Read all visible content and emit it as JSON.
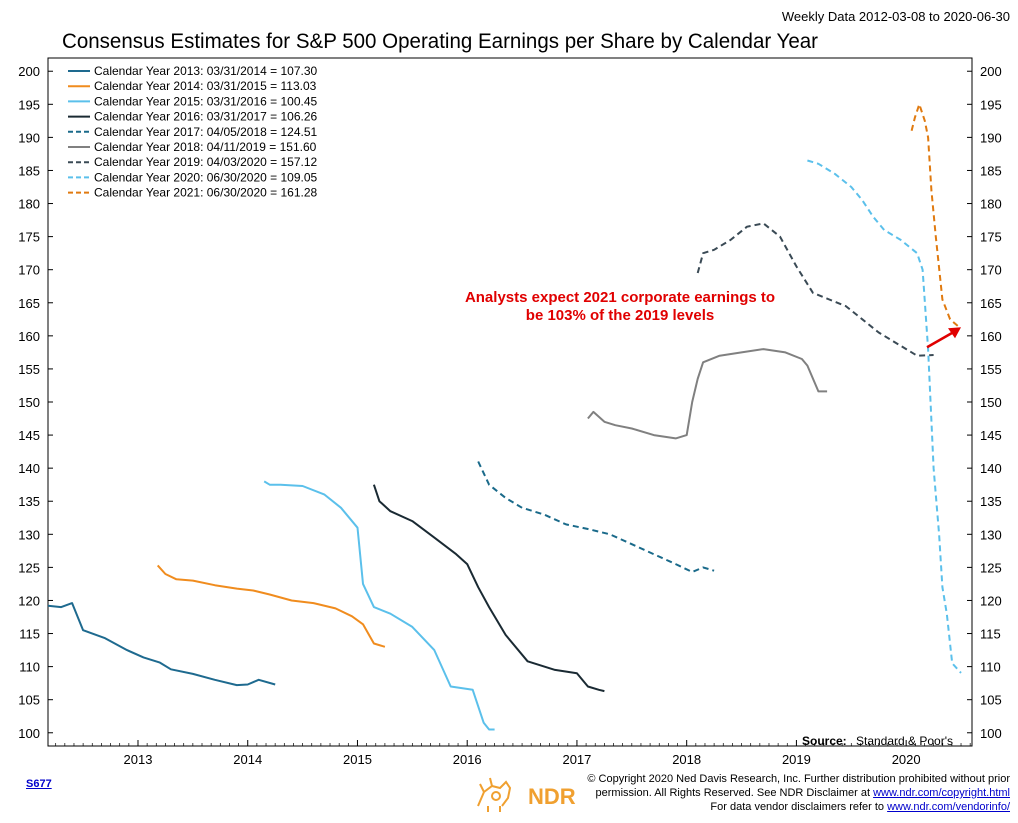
{
  "header": {
    "date_range": "Weekly Data 2012-03-08 to 2020-06-30",
    "title": "Consensus Estimates for S&P 500 Operating Earnings per Share by Calendar Year"
  },
  "annotation": {
    "line1": "Analysts expect 2021 corporate earnings to",
    "line2": "be 103% of the 2019 levels",
    "color": "#e00000"
  },
  "source": {
    "label": "Source:",
    "value": "Standard & Poor's"
  },
  "footer": {
    "chart_id": "S677",
    "copyright_line1": "© Copyright 2020 Ned Davis Research, Inc. Further distribution prohibited without prior",
    "copyright_line2_prefix": "permission. All Rights Reserved. See NDR Disclaimer at ",
    "copyright_line2_link": "www.ndr.com/copyright.html",
    "copyright_line3_prefix": "For data vendor disclaimers refer to ",
    "copyright_line3_link": "www.ndr.com/vendorinfo/",
    "logo_text": "NDR",
    "logo_icon": "bull-bear-icon"
  },
  "chart_data": {
    "type": "line",
    "xlim": [
      2012.18,
      2020.6
    ],
    "ylim": [
      98,
      202
    ],
    "y_ticks": [
      100,
      105,
      110,
      115,
      120,
      125,
      130,
      135,
      140,
      145,
      150,
      155,
      160,
      165,
      170,
      175,
      180,
      185,
      190,
      195,
      200
    ],
    "x_ticks": [
      "2013",
      "2014",
      "2015",
      "2016",
      "2017",
      "2018",
      "2019",
      "2020"
    ],
    "x_tick_positions": [
      2013,
      2014,
      2015,
      2016,
      2017,
      2018,
      2019,
      2020
    ],
    "annotation_arrow_to": [
      2020.5,
      161.3
    ],
    "series": [
      {
        "name": "Calendar Year 2013:  03/31/2014 = 107.30",
        "color": "#1e6a8f",
        "dash": false,
        "x": [
          2012.18,
          2012.3,
          2012.4,
          2012.5,
          2012.7,
          2012.9,
          2013.05,
          2013.2,
          2013.3,
          2013.5,
          2013.7,
          2013.9,
          2014.0,
          2014.1,
          2014.25
        ],
        "y": [
          119.2,
          119.0,
          119.6,
          115.5,
          114.3,
          112.5,
          111.4,
          110.6,
          109.6,
          108.9,
          108.0,
          107.2,
          107.3,
          108.0,
          107.3
        ]
      },
      {
        "name": "Calendar Year 2014:  03/31/2015 = 113.03",
        "color": "#f08c1e",
        "dash": false,
        "x": [
          2013.18,
          2013.25,
          2013.35,
          2013.5,
          2013.7,
          2013.9,
          2014.05,
          2014.2,
          2014.4,
          2014.6,
          2014.8,
          2014.95,
          2015.05,
          2015.15,
          2015.25
        ],
        "y": [
          125.3,
          124.0,
          123.2,
          123.0,
          122.3,
          121.8,
          121.5,
          120.9,
          120.0,
          119.6,
          118.8,
          117.6,
          116.4,
          113.5,
          113.0
        ]
      },
      {
        "name": "Calendar Year 2015:  03/31/2016 = 100.45",
        "color": "#5bc0eb",
        "dash": false,
        "x": [
          2014.15,
          2014.2,
          2014.3,
          2014.5,
          2014.7,
          2014.85,
          2015.0,
          2015.05,
          2015.15,
          2015.3,
          2015.5,
          2015.7,
          2015.85,
          2016.05,
          2016.15,
          2016.2,
          2016.25
        ],
        "y": [
          138.0,
          137.5,
          137.5,
          137.3,
          136.0,
          134.0,
          131.0,
          122.5,
          119.0,
          118.0,
          116.0,
          112.5,
          107.0,
          106.5,
          101.5,
          100.5,
          100.5
        ]
      },
      {
        "name": "Calendar Year 2016:  03/31/2017 = 106.26",
        "color": "#1a2a33",
        "dash": false,
        "x": [
          2015.15,
          2015.2,
          2015.3,
          2015.5,
          2015.7,
          2015.9,
          2016.0,
          2016.1,
          2016.2,
          2016.35,
          2016.55,
          2016.8,
          2017.0,
          2017.1,
          2017.2,
          2017.25
        ],
        "y": [
          137.5,
          135.0,
          133.5,
          132.0,
          129.5,
          127.0,
          125.5,
          122.0,
          119.0,
          114.8,
          110.8,
          109.5,
          109.0,
          107.0,
          106.5,
          106.3
        ]
      },
      {
        "name": "Calendar Year 2017:  04/05/2018 = 124.51",
        "color": "#1a6a8a",
        "dash": true,
        "x": [
          2016.1,
          2016.2,
          2016.35,
          2016.5,
          2016.7,
          2016.9,
          2017.1,
          2017.3,
          2017.5,
          2017.7,
          2017.9,
          2018.05,
          2018.15,
          2018.25
        ],
        "y": [
          141.0,
          137.5,
          135.5,
          134.0,
          133.0,
          131.5,
          130.8,
          130.0,
          128.5,
          127.0,
          125.5,
          124.3,
          125.0,
          124.5
        ]
      },
      {
        "name": "Calendar Year 2018:  04/11/2019 = 151.60",
        "color": "#808080",
        "dash": false,
        "x": [
          2017.1,
          2017.15,
          2017.25,
          2017.35,
          2017.5,
          2017.7,
          2017.9,
          2018.0,
          2018.05,
          2018.1,
          2018.15,
          2018.3,
          2018.5,
          2018.7,
          2018.9,
          2019.05,
          2019.1,
          2019.2,
          2019.28
        ],
        "y": [
          147.5,
          148.5,
          147.0,
          146.5,
          146.0,
          145.0,
          144.5,
          145.0,
          150.0,
          153.5,
          156.0,
          157.0,
          157.5,
          158.0,
          157.5,
          156.5,
          155.5,
          151.6,
          151.6
        ]
      },
      {
        "name": "Calendar Year 2019:  04/03/2020 = 157.12",
        "color": "#3a4a55",
        "dash": true,
        "x": [
          2018.1,
          2018.15,
          2018.25,
          2018.4,
          2018.55,
          2018.7,
          2018.85,
          2019.0,
          2019.15,
          2019.3,
          2019.45,
          2019.6,
          2019.75,
          2019.9,
          2020.0,
          2020.1,
          2020.25
        ],
        "y": [
          169.5,
          172.5,
          173.0,
          174.5,
          176.5,
          177.0,
          175.0,
          170.5,
          166.5,
          165.5,
          164.5,
          162.5,
          160.5,
          159.0,
          158.0,
          157.0,
          157.1
        ]
      },
      {
        "name": "Calendar Year 2020:  06/30/2020 = 109.05",
        "color": "#5bc0eb",
        "dash": true,
        "x": [
          2019.1,
          2019.2,
          2019.35,
          2019.5,
          2019.6,
          2019.7,
          2019.8,
          2019.95,
          2020.1,
          2020.15,
          2020.2,
          2020.25,
          2020.3,
          2020.33,
          2020.37,
          2020.42,
          2020.5
        ],
        "y": [
          186.5,
          186.0,
          184.5,
          182.5,
          180.5,
          178.0,
          176.0,
          174.5,
          172.5,
          170.0,
          158.0,
          140.0,
          130.0,
          122.0,
          118.0,
          110.5,
          109.05
        ]
      },
      {
        "name": "Calendar Year 2021:  06/30/2020 = 161.28",
        "color": "#e07a10",
        "dash": true,
        "x": [
          2020.05,
          2020.08,
          2020.12,
          2020.17,
          2020.2,
          2020.23,
          2020.27,
          2020.33,
          2020.4,
          2020.47,
          2020.5
        ],
        "y": [
          191.0,
          193.0,
          195.0,
          192.5,
          190.0,
          182.0,
          175.0,
          165.5,
          162.5,
          161.5,
          161.28
        ]
      }
    ]
  }
}
